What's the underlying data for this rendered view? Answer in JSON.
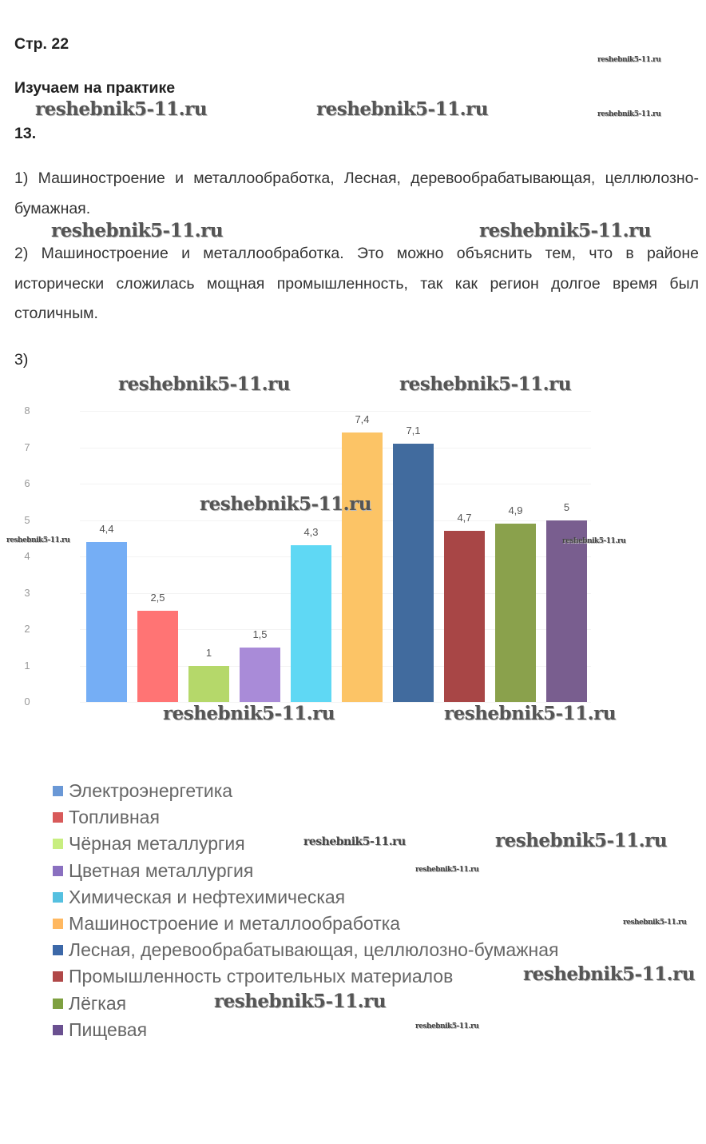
{
  "page_ref": "Стр. 22",
  "section": "Изучаем на практике",
  "task_number": "13.",
  "answer1": "1) Машиностроение и металлообработка, Лесная, деревообрабатывающая, целлюлозно-бумажная.",
  "answer2": "2) Машиностроение и металлообработка. Это можно объяснить тем, что в районе исторически сложилась мощная промышленность, так как регион долгое время был столичным.",
  "answer3_label": "3)",
  "watermark": "reshebnik5-11.ru",
  "chart_data": {
    "type": "bar",
    "title": "",
    "xlabel": "",
    "ylabel": "",
    "ylim": [
      0,
      8
    ],
    "yticks": [
      "0",
      "1",
      "2",
      "3",
      "4",
      "5",
      "6",
      "7",
      "8"
    ],
    "grid": true,
    "legend_position": "bottom-left",
    "categories": [
      "Электроэнергетика",
      "Топливная",
      "Чёрная металлургия",
      "Цветная металлургия",
      "Химическая и нефтехимическая",
      "Машиностроение и металлообработка",
      "Лесная, деревообрабатывающая, целлюлозно-бумажная",
      "Промышленность строительных материалов",
      "Лёгкая",
      "Пищевая"
    ],
    "values": [
      4.4,
      2.5,
      1,
      1.5,
      4.3,
      7.4,
      7.1,
      4.7,
      4.9,
      5
    ],
    "value_labels": [
      "4,4",
      "2,5",
      "1",
      "1,5",
      "4,3",
      "7,4",
      "7,1",
      "4,7",
      "4,9",
      "5"
    ],
    "colors": [
      "#75aef5",
      "#ff7474",
      "#b5d86a",
      "#a98bd8",
      "#5fd8f4",
      "#fcc466",
      "#416b9e",
      "#a84646",
      "#8aa14c",
      "#795e8f"
    ],
    "legend_colors": [
      "#6a98d6",
      "#d85a5a",
      "#c8ee80",
      "#8a70c0",
      "#55c0e0",
      "#ffb860",
      "#3c68a8",
      "#b04848",
      "#7ea040",
      "#6a5090"
    ]
  }
}
